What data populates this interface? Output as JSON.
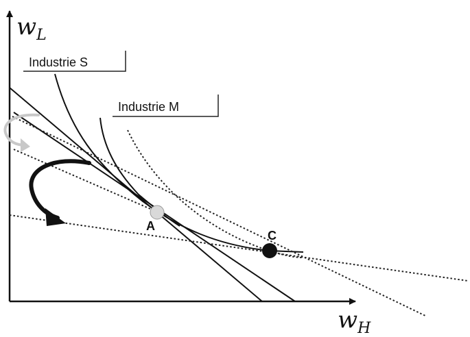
{
  "axes": {
    "y_label_main": "w",
    "y_label_sub": "L",
    "x_label_main": "w",
    "x_label_sub": "H"
  },
  "labels": {
    "industry_s": "Industrie S",
    "industry_m": "Industrie M"
  },
  "points": {
    "a": {
      "label": "A",
      "color": "#d9d9d9"
    },
    "c": {
      "label": "C",
      "color": "#111111"
    }
  },
  "colors": {
    "ink": "#111111",
    "arrow_light": "#c8c8c8"
  }
}
